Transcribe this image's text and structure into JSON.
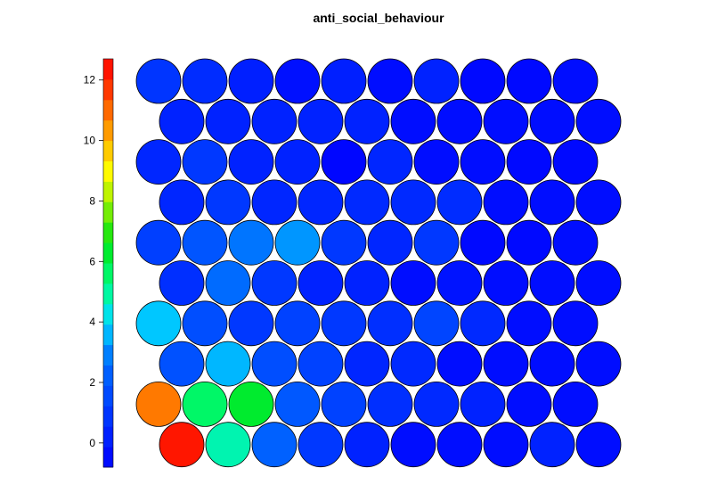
{
  "chart_data": {
    "type": "heatmap",
    "title": "anti_social_behaviour",
    "grid": {
      "rows": 10,
      "cols": 10,
      "layout": "hexagonal"
    },
    "values": [
      [
        0.9,
        0.6,
        0.2,
        -0.3,
        0.2,
        -0.4,
        0.3,
        -0.5,
        -0.5,
        -0.4
      ],
      [
        0.3,
        0.3,
        0.3,
        0.3,
        0.3,
        -0.4,
        -0.4,
        -0.4,
        -0.4,
        -0.4
      ],
      [
        0.4,
        1.0,
        0.3,
        0.3,
        -0.6,
        0.4,
        -0.4,
        -0.4,
        -0.5,
        -0.5
      ],
      [
        0.4,
        1.0,
        0.4,
        0.4,
        0.5,
        0.5,
        0.6,
        -0.4,
        -0.4,
        -0.4
      ],
      [
        1.2,
        1.9,
        2.8,
        3.2,
        1.0,
        0.4,
        1.0,
        -0.5,
        -0.5,
        -0.4
      ],
      [
        0.7,
        2.6,
        1.0,
        0.3,
        0.3,
        -0.4,
        -0.2,
        -0.4,
        -0.4,
        -0.4
      ],
      [
        3.8,
        1.7,
        1.0,
        1.3,
        1.0,
        0.7,
        1.4,
        0.5,
        -0.4,
        -0.4
      ],
      [
        1.8,
        3.6,
        1.7,
        1.3,
        0.4,
        0.5,
        -0.4,
        -0.4,
        -0.4,
        -0.4
      ],
      [
        10.8,
        5.6,
        6.3,
        2.0,
        1.3,
        0.7,
        0.5,
        0.3,
        -0.4,
        -0.4
      ],
      [
        12.3,
        4.8,
        2.3,
        1.0,
        0.3,
        -0.4,
        -0.4,
        -0.4,
        0.3,
        -0.4
      ]
    ],
    "colorbar": {
      "min": -0.8,
      "max": 12.7,
      "ticks": [
        0,
        2,
        4,
        6,
        8,
        10,
        12
      ],
      "tick_labels": [
        "0",
        "2",
        "4",
        "6",
        "8",
        "10",
        "12"
      ],
      "colormap": "rainbow"
    }
  }
}
